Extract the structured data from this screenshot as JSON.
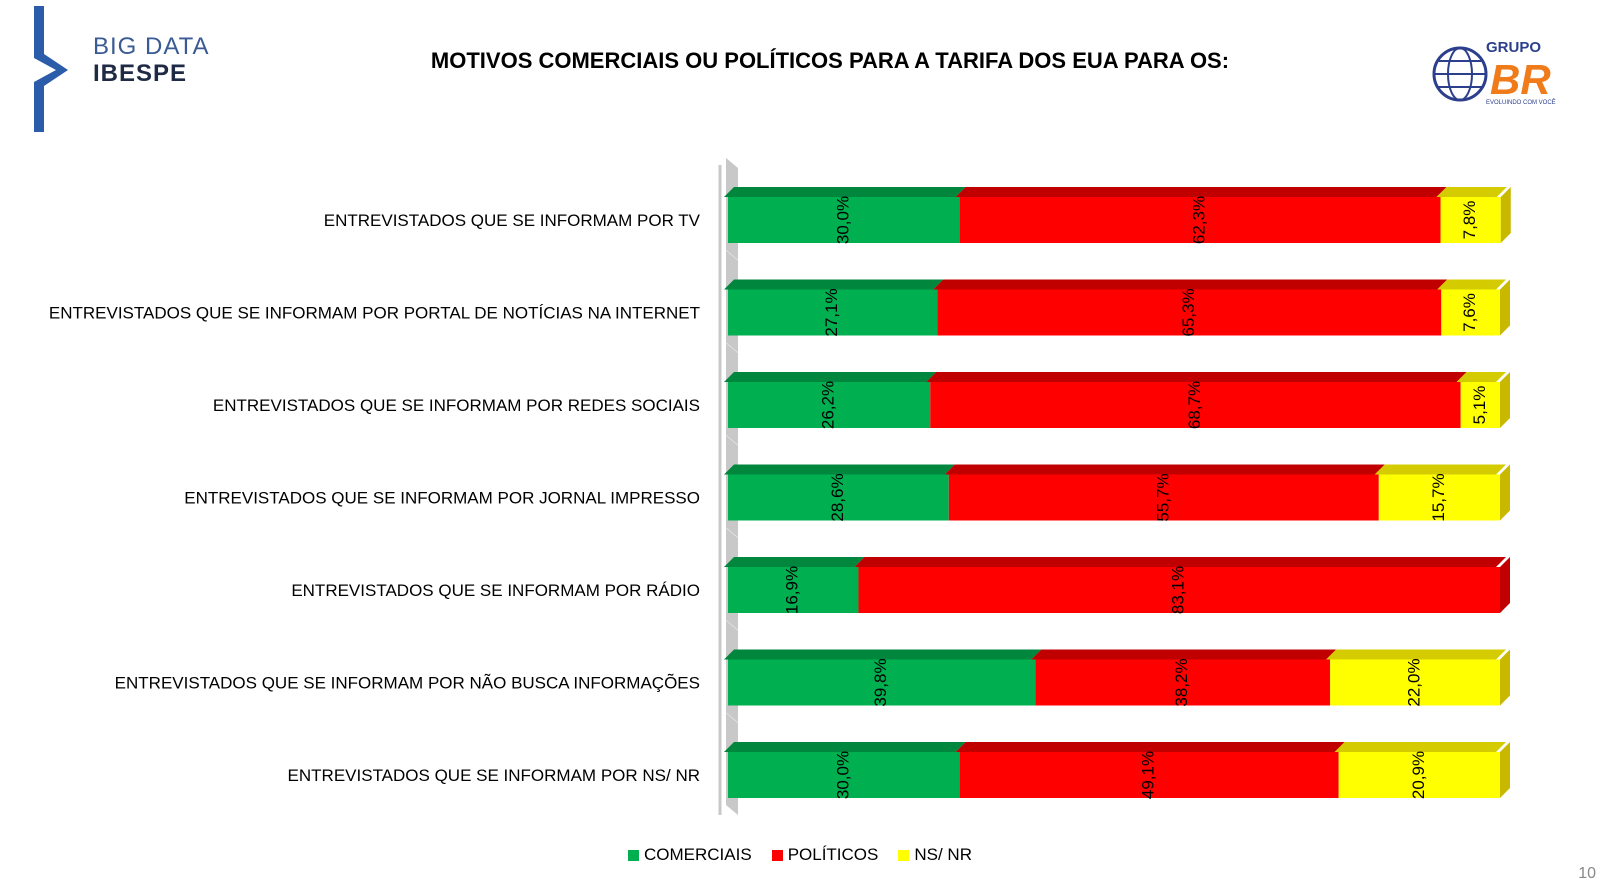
{
  "header": {
    "brand_line1": "BIG DATA",
    "brand_line2": "IBESPE",
    "title": "MOTIVOS COMERCIAIS OU POLÍTICOS PARA A TARIFA DOS EUA PARA OS:",
    "partner_logo_top": "GRUPO",
    "partner_logo_main": "BR",
    "partner_logo_tagline": "EVOLUINDO COM VOCÊ"
  },
  "chart_data": {
    "type": "bar",
    "orientation": "horizontal",
    "stacked": true,
    "normalized": true,
    "xlim": [
      0,
      100
    ],
    "grid": false,
    "legend_position": "bottom",
    "categories": [
      "ENTREVISTADOS QUE SE INFORMAM POR TV",
      "ENTREVISTADOS QUE SE INFORMAM POR PORTAL DE NOTÍCIAS NA INTERNET",
      "ENTREVISTADOS QUE SE INFORMAM POR REDES SOCIAIS",
      "ENTREVISTADOS QUE SE INFORMAM POR JORNAL IMPRESSO",
      "ENTREVISTADOS QUE SE INFORMAM POR RÁDIO",
      "ENTREVISTADOS QUE SE INFORMAM POR NÃO BUSCA INFORMAÇÕES",
      "ENTREVISTADOS QUE SE INFORMAM POR NS/ NR"
    ],
    "series": [
      {
        "name": "COMERCIAIS",
        "color": "#00b050",
        "top_color": "#00863d",
        "values": [
          30.0,
          27.1,
          26.2,
          28.6,
          16.9,
          39.8,
          30.0
        ],
        "labels": [
          "30,0%",
          "27,1%",
          "26,2%",
          "28,6%",
          "16,9%",
          "39,8%",
          "30,0%"
        ]
      },
      {
        "name": "POLÍTICOS",
        "color": "#ff0000",
        "top_color": "#c00000",
        "values": [
          62.3,
          65.3,
          68.7,
          55.7,
          83.1,
          38.2,
          49.1
        ],
        "labels": [
          "62,3%",
          "65,3%",
          "68,7%",
          "55,7%",
          "83,1%",
          "38,2%",
          "49,1%"
        ]
      },
      {
        "name": "NS/ NR",
        "color": "#ffff00",
        "top_color": "#d4cc00",
        "side_color": "#c9b800",
        "values": [
          7.8,
          7.6,
          5.1,
          15.7,
          0,
          22.0,
          20.9
        ],
        "labels": [
          "7,8%",
          "7,6%",
          "5,1%",
          "15,7%",
          "",
          "22,0%",
          "20,9%"
        ]
      }
    ]
  },
  "page_number": "10"
}
